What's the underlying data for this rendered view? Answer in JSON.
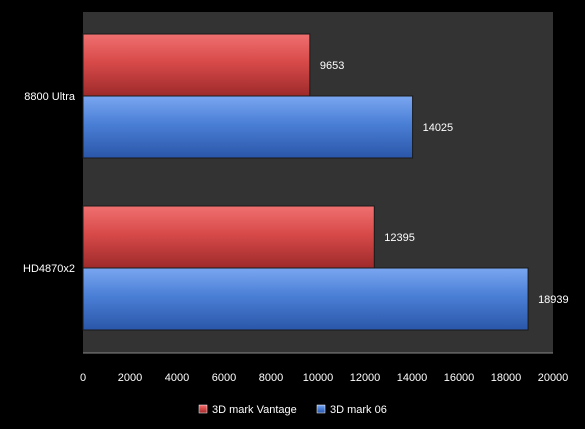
{
  "chart_data": {
    "type": "bar",
    "orientation": "horizontal",
    "categories": [
      "8800 Ultra",
      "HD4870x2"
    ],
    "series": [
      {
        "name": "3D mark Vantage",
        "values": [
          9653,
          12395
        ],
        "color": "#d84a4a"
      },
      {
        "name": "3D mark 06",
        "values": [
          14025,
          18939
        ],
        "color": "#4a7fd6"
      }
    ],
    "xlim": [
      0,
      20000
    ],
    "x_ticks": [
      0,
      2000,
      4000,
      6000,
      8000,
      10000,
      12000,
      14000,
      16000,
      18000,
      20000
    ],
    "grid": false,
    "legend": "bottom",
    "data_labels": true,
    "title": "",
    "xlabel": "",
    "ylabel": "",
    "colors": {
      "background": "#000000",
      "plot_area": "#333333",
      "text": "#ffffff"
    }
  }
}
